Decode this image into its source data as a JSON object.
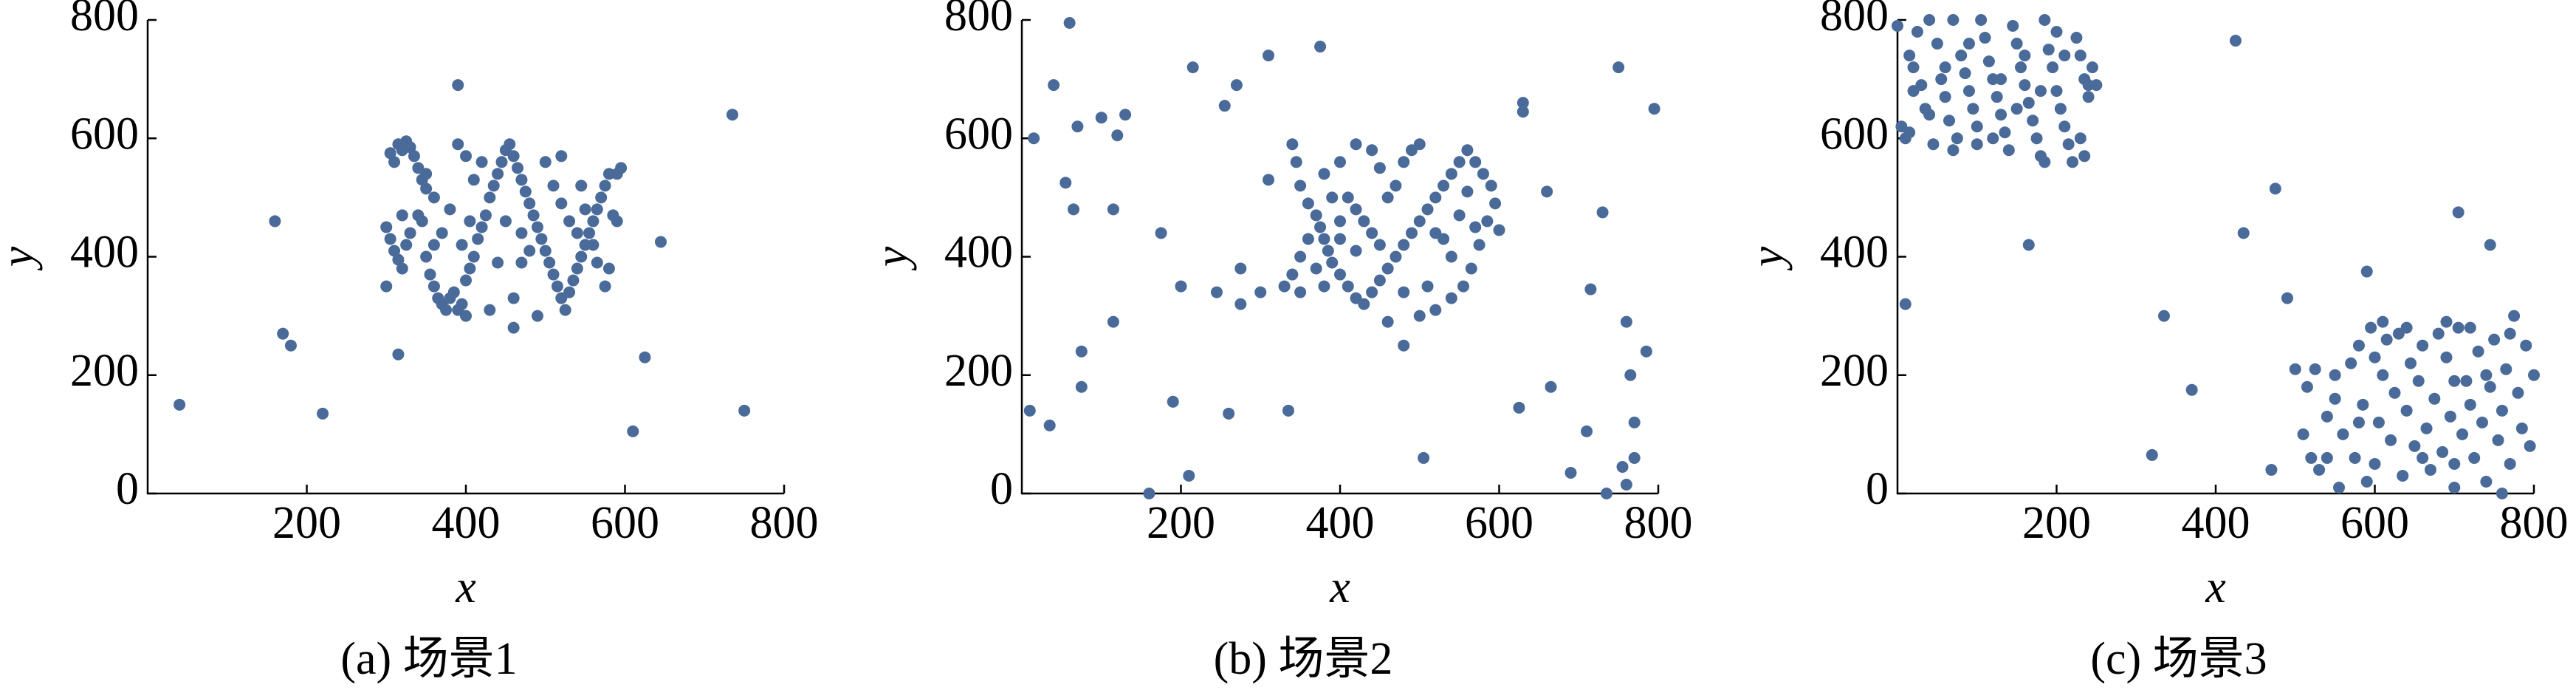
{
  "chart_data": [
    {
      "type": "scatter",
      "title": "(a) 场景1",
      "xlabel": "x",
      "ylabel": "y",
      "color": "#4a6b99",
      "xlim": [
        0,
        800
      ],
      "ylim": [
        0,
        800
      ],
      "xticks": [
        200,
        400,
        600,
        800
      ],
      "yticks": [
        0,
        200,
        400,
        600,
        800
      ],
      "x": [
        40,
        160,
        170,
        180,
        220,
        315,
        390,
        610,
        625,
        645,
        735,
        750,
        305,
        310,
        315,
        320,
        325,
        330,
        335,
        340,
        345,
        350,
        300,
        305,
        310,
        315,
        320,
        325,
        330,
        340,
        345,
        350,
        355,
        360,
        365,
        370,
        375,
        380,
        385,
        390,
        395,
        400,
        405,
        410,
        415,
        420,
        425,
        430,
        435,
        440,
        445,
        450,
        455,
        460,
        465,
        470,
        475,
        480,
        485,
        490,
        495,
        500,
        505,
        510,
        515,
        520,
        525,
        530,
        535,
        540,
        545,
        550,
        555,
        560,
        565,
        570,
        575,
        580,
        585,
        590,
        580,
        575,
        390,
        400,
        410,
        420,
        380,
        370,
        360,
        350,
        395,
        405,
        440,
        460,
        470,
        480,
        500,
        510,
        520,
        530,
        540,
        550,
        560,
        490,
        460,
        400,
        430,
        300,
        320,
        360,
        450,
        470,
        520,
        545,
        565,
        590,
        595
      ],
      "values": [
        150,
        460,
        270,
        250,
        135,
        235,
        690,
        105,
        230,
        425,
        640,
        140,
        575,
        560,
        590,
        580,
        595,
        585,
        570,
        550,
        530,
        515,
        450,
        430,
        410,
        395,
        380,
        420,
        440,
        470,
        460,
        400,
        370,
        350,
        330,
        320,
        310,
        330,
        340,
        310,
        320,
        360,
        380,
        400,
        430,
        450,
        470,
        500,
        520,
        540,
        560,
        580,
        590,
        570,
        550,
        530,
        510,
        490,
        470,
        450,
        430,
        410,
        390,
        370,
        350,
        330,
        310,
        340,
        360,
        380,
        400,
        420,
        440,
        460,
        480,
        500,
        520,
        540,
        470,
        460,
        380,
        350,
        590,
        570,
        530,
        560,
        480,
        440,
        500,
        540,
        420,
        460,
        390,
        330,
        390,
        410,
        560,
        520,
        490,
        460,
        440,
        480,
        420,
        300,
        280,
        300,
        310,
        350,
        470,
        420,
        460,
        440,
        570,
        520,
        390,
        540,
        550
      ]
    },
    {
      "type": "scatter",
      "title": "(b) 场景2",
      "xlabel": "x",
      "ylabel": "y",
      "color": "#4a6b99",
      "xlim": [
        0,
        800
      ],
      "ylim": [
        0,
        800
      ],
      "xticks": [
        200,
        400,
        600,
        800
      ],
      "yticks": [
        0,
        200,
        400,
        600,
        800
      ],
      "x": [
        10,
        15,
        35,
        40,
        55,
        60,
        65,
        70,
        75,
        75,
        100,
        115,
        115,
        120,
        130,
        160,
        175,
        190,
        200,
        210,
        215,
        245,
        255,
        260,
        270,
        275,
        275,
        300,
        310,
        310,
        335,
        375,
        505,
        600,
        625,
        630,
        630,
        660,
        665,
        690,
        710,
        715,
        730,
        735,
        750,
        755,
        760,
        760,
        765,
        770,
        770,
        795,
        785,
        340,
        345,
        350,
        360,
        370,
        375,
        380,
        385,
        390,
        400,
        410,
        420,
        430,
        440,
        450,
        460,
        470,
        480,
        490,
        500,
        510,
        520,
        530,
        540,
        550,
        560,
        570,
        580,
        590,
        595,
        585,
        575,
        565,
        555,
        540,
        520,
        500,
        480,
        460,
        440,
        420,
        400,
        380,
        360,
        350,
        340,
        330,
        350,
        410,
        420,
        430,
        440,
        450,
        460,
        470,
        480,
        490,
        500,
        450,
        400,
        390,
        370,
        520,
        530,
        540,
        550,
        560,
        570,
        510,
        480,
        420,
        400,
        380
      ],
      "values": [
        140,
        600,
        115,
        690,
        525,
        795,
        480,
        620,
        240,
        180,
        635,
        480,
        290,
        605,
        640,
        0,
        440,
        155,
        350,
        30,
        720,
        340,
        655,
        135,
        690,
        380,
        320,
        340,
        740,
        530,
        140,
        755,
        60,
        445,
        145,
        660,
        645,
        510,
        180,
        35,
        105,
        345,
        475,
        0,
        720,
        45,
        290,
        15,
        200,
        120,
        60,
        650,
        240,
        590,
        560,
        520,
        490,
        470,
        450,
        430,
        410,
        390,
        370,
        350,
        330,
        320,
        340,
        360,
        380,
        400,
        420,
        440,
        460,
        480,
        500,
        520,
        540,
        560,
        580,
        560,
        540,
        520,
        490,
        460,
        420,
        380,
        350,
        330,
        310,
        300,
        250,
        290,
        580,
        590,
        560,
        540,
        430,
        400,
        370,
        350,
        340,
        500,
        480,
        460,
        440,
        420,
        500,
        520,
        560,
        580,
        590,
        550,
        460,
        500,
        380,
        440,
        430,
        400,
        470,
        510,
        450,
        350,
        340,
        410,
        430,
        350
      ]
    },
    {
      "type": "scatter",
      "title": "(c) 场景3",
      "xlabel": "x",
      "ylabel": "y",
      "color": "#4a6b99",
      "xlim": [
        0,
        800
      ],
      "ylim": [
        0,
        800
      ],
      "xticks": [
        200,
        400,
        600,
        800
      ],
      "yticks": [
        0,
        200,
        400,
        600,
        800
      ],
      "x": [
        10,
        165,
        320,
        335,
        370,
        425,
        435,
        470,
        475,
        490,
        590,
        705,
        745,
        0,
        5,
        10,
        15,
        20,
        25,
        30,
        35,
        40,
        45,
        50,
        55,
        60,
        65,
        70,
        75,
        80,
        85,
        90,
        95,
        100,
        105,
        110,
        115,
        120,
        125,
        130,
        135,
        140,
        145,
        150,
        155,
        160,
        165,
        170,
        175,
        180,
        185,
        190,
        195,
        200,
        205,
        210,
        215,
        220,
        225,
        230,
        235,
        240,
        245,
        240,
        230,
        210,
        180,
        150,
        120,
        90,
        60,
        40,
        20,
        130,
        160,
        200,
        100,
        250,
        15,
        70,
        235,
        185,
        510,
        515,
        520,
        525,
        530,
        540,
        550,
        555,
        560,
        570,
        575,
        580,
        585,
        590,
        595,
        600,
        600,
        605,
        610,
        615,
        620,
        625,
        630,
        635,
        640,
        645,
        650,
        655,
        660,
        665,
        670,
        675,
        680,
        685,
        690,
        695,
        700,
        705,
        710,
        715,
        720,
        725,
        730,
        735,
        740,
        745,
        750,
        755,
        760,
        765,
        770,
        775,
        780,
        785,
        790,
        795,
        800,
        610,
        580,
        550,
        540,
        690,
        720,
        760,
        700,
        640,
        660,
        700,
        740,
        770,
        500
      ],
      "values": [
        320,
        420,
        65,
        300,
        175,
        765,
        440,
        40,
        515,
        330,
        375,
        475,
        420,
        790,
        620,
        600,
        740,
        720,
        780,
        690,
        650,
        800,
        590,
        760,
        700,
        670,
        630,
        800,
        600,
        740,
        710,
        680,
        650,
        620,
        800,
        770,
        730,
        700,
        670,
        640,
        610,
        580,
        790,
        760,
        720,
        690,
        660,
        630,
        600,
        570,
        800,
        750,
        720,
        680,
        650,
        620,
        590,
        560,
        770,
        740,
        700,
        690,
        720,
        670,
        600,
        740,
        680,
        650,
        600,
        760,
        720,
        640,
        680,
        700,
        740,
        780,
        590,
        690,
        610,
        580,
        570,
        560,
        100,
        180,
        60,
        210,
        40,
        130,
        160,
        10,
        100,
        220,
        60,
        250,
        150,
        20,
        280,
        230,
        50,
        120,
        200,
        260,
        90,
        170,
        270,
        30,
        140,
        220,
        80,
        190,
        250,
        110,
        40,
        160,
        270,
        70,
        230,
        130,
        10,
        280,
        100,
        190,
        150,
        60,
        240,
        120,
        20,
        180,
        260,
        90,
        140,
        210,
        50,
        300,
        170,
        110,
        250,
        80,
        200,
        290,
        120,
        200,
        60,
        290,
        280,
        0,
        50,
        280,
        60,
        190,
        200,
        270,
        210
      ]
    }
  ]
}
